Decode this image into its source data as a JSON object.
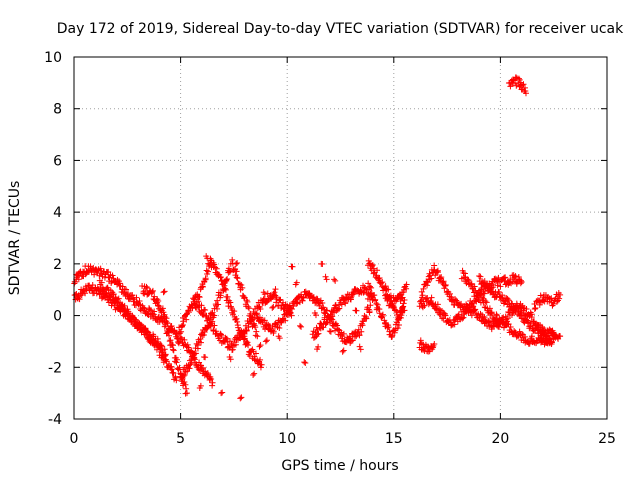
{
  "chart_data": {
    "type": "scatter",
    "title": "Day 172 of 2019, Sidereal Day-to-day VTEC variation (SDTVAR) for receiver ucak",
    "xlabel": "GPS time / hours",
    "ylabel": "SDTVAR / TECUs",
    "xlim": [
      0,
      25
    ],
    "ylim": [
      -4,
      10
    ],
    "xticks": [
      0,
      5,
      10,
      15,
      20,
      25
    ],
    "yticks": [
      -4,
      -2,
      0,
      2,
      4,
      6,
      8,
      10
    ],
    "grid": true,
    "marker": "+",
    "color": "#ff0000",
    "series": [
      {
        "name": "tracks",
        "tracks": [
          [
            [
              0.0,
              1.4
            ],
            [
              0.6,
              1.8
            ],
            [
              1.5,
              1.6
            ],
            [
              2.2,
              1.1
            ],
            [
              2.8,
              0.6
            ],
            [
              3.4,
              0.2
            ],
            [
              3.8,
              0.0
            ],
            [
              4.2,
              -0.3
            ],
            [
              4.6,
              -1.2
            ],
            [
              5.0,
              -2.3
            ],
            [
              5.3,
              -3.0
            ]
          ],
          [
            [
              0.0,
              0.6
            ],
            [
              0.7,
              1.1
            ],
            [
              1.2,
              0.9
            ],
            [
              1.8,
              0.5
            ],
            [
              2.4,
              0.1
            ],
            [
              2.9,
              -0.3
            ],
            [
              3.4,
              -0.7
            ],
            [
              3.9,
              -1.0
            ],
            [
              4.3,
              -1.5
            ]
          ],
          [
            [
              1.2,
              1.2
            ],
            [
              2.0,
              0.6
            ],
            [
              2.8,
              -0.2
            ],
            [
              3.5,
              -0.8
            ],
            [
              4.2,
              -1.6
            ],
            [
              4.8,
              -2.5
            ]
          ],
          [
            [
              3.2,
              1.0
            ],
            [
              3.6,
              0.9
            ],
            [
              4.0,
              0.4
            ],
            [
              4.4,
              -0.3
            ],
            [
              4.9,
              -0.9
            ],
            [
              5.3,
              -1.2
            ],
            [
              5.7,
              -1.8
            ],
            [
              6.1,
              -2.2
            ],
            [
              6.5,
              -2.6
            ]
          ],
          [
            [
              4.8,
              -0.8
            ],
            [
              5.4,
              0.2
            ],
            [
              6.0,
              1.0
            ],
            [
              6.4,
              2.1
            ],
            [
              6.8,
              1.6
            ],
            [
              7.2,
              0.6
            ],
            [
              7.8,
              -0.6
            ],
            [
              8.3,
              -1.4
            ],
            [
              8.8,
              -1.9
            ]
          ],
          [
            [
              5.0,
              -2.4
            ],
            [
              5.5,
              -1.8
            ],
            [
              6.0,
              -0.8
            ],
            [
              6.6,
              0.2
            ],
            [
              7.0,
              1.2
            ],
            [
              7.4,
              2.0
            ],
            [
              7.8,
              1.2
            ],
            [
              8.2,
              0.2
            ],
            [
              8.6,
              -0.8
            ]
          ],
          [
            [
              5.6,
              0.6
            ],
            [
              6.2,
              0.0
            ],
            [
              6.8,
              -0.8
            ],
            [
              7.4,
              -1.2
            ],
            [
              8.0,
              -0.6
            ],
            [
              8.6,
              0.3
            ],
            [
              9.2,
              0.8
            ],
            [
              9.8,
              0.4
            ],
            [
              10.2,
              0.0
            ]
          ],
          [
            [
              8.6,
              0.0
            ],
            [
              9.2,
              -0.6
            ],
            [
              9.8,
              -0.2
            ],
            [
              10.4,
              0.6
            ],
            [
              11.0,
              0.8
            ],
            [
              11.6,
              0.4
            ],
            [
              12.2,
              -0.4
            ],
            [
              12.8,
              -1.0
            ],
            [
              13.4,
              -0.6
            ],
            [
              13.9,
              0.4
            ]
          ],
          [
            [
              11.2,
              -0.8
            ],
            [
              11.8,
              -0.2
            ],
            [
              12.4,
              0.4
            ],
            [
              13.0,
              0.8
            ],
            [
              13.6,
              1.0
            ],
            [
              14.0,
              0.6
            ]
          ],
          [
            [
              13.8,
              2.0
            ],
            [
              14.2,
              1.6
            ],
            [
              14.6,
              1.0
            ],
            [
              15.0,
              0.5
            ],
            [
              15.4,
              0.8
            ],
            [
              15.6,
              1.2
            ]
          ],
          [
            [
              13.8,
              1.2
            ],
            [
              14.2,
              0.4
            ],
            [
              14.6,
              -0.3
            ],
            [
              14.9,
              -0.8
            ],
            [
              15.2,
              -0.3
            ],
            [
              15.5,
              0.6
            ]
          ],
          [
            [
              14.6,
              0.9
            ],
            [
              14.9,
              0.3
            ],
            [
              15.2,
              0.0
            ],
            [
              15.5,
              0.2
            ]
          ],
          [
            [
              16.3,
              0.8
            ],
            [
              16.6,
              1.4
            ],
            [
              16.9,
              1.8
            ],
            [
              17.2,
              1.4
            ],
            [
              17.6,
              0.8
            ],
            [
              18.0,
              0.4
            ],
            [
              18.4,
              0.2
            ]
          ],
          [
            [
              16.2,
              0.4
            ],
            [
              16.6,
              0.6
            ],
            [
              17.0,
              0.4
            ],
            [
              17.4,
              -0.1
            ],
            [
              17.8,
              -0.3
            ],
            [
              18.2,
              0.0
            ],
            [
              18.6,
              0.4
            ],
            [
              19.0,
              0.8
            ],
            [
              19.4,
              1.1
            ],
            [
              19.8,
              1.3
            ],
            [
              20.2,
              1.3
            ],
            [
              20.6,
              1.4
            ],
            [
              21.0,
              1.3
            ]
          ],
          [
            [
              18.2,
              1.6
            ],
            [
              18.8,
              1.0
            ],
            [
              19.4,
              0.3
            ],
            [
              20.0,
              -0.3
            ],
            [
              20.6,
              -0.6
            ],
            [
              21.2,
              -0.9
            ],
            [
              21.8,
              -1.0
            ],
            [
              22.4,
              -0.9
            ],
            [
              22.8,
              -0.8
            ]
          ],
          [
            [
              18.4,
              0.3
            ],
            [
              19.0,
              0.0
            ],
            [
              19.6,
              -0.4
            ],
            [
              20.2,
              -0.2
            ],
            [
              20.8,
              0.4
            ],
            [
              21.4,
              0.0
            ],
            [
              22.0,
              -0.8
            ],
            [
              22.4,
              -1.1
            ]
          ],
          [
            [
              19.0,
              1.4
            ],
            [
              19.6,
              0.9
            ],
            [
              20.2,
              0.6
            ],
            [
              20.8,
              0.2
            ],
            [
              21.4,
              -0.4
            ],
            [
              22.0,
              -0.6
            ],
            [
              22.6,
              -0.8
            ]
          ],
          [
            [
              21.6,
              0.4
            ],
            [
              22.0,
              0.7
            ],
            [
              22.4,
              0.5
            ],
            [
              22.8,
              0.8
            ]
          ],
          [
            [
              16.2,
              -1.1
            ],
            [
              16.6,
              -1.3
            ],
            [
              16.9,
              -1.1
            ]
          ],
          [
            [
              20.4,
              8.9
            ],
            [
              20.7,
              9.1
            ],
            [
              21.0,
              8.9
            ],
            [
              21.2,
              8.6
            ]
          ]
        ],
        "scatter_points": [
          [
            6.2,
            2.3
          ],
          [
            6.4,
            2.2
          ],
          [
            7.6,
            2.0
          ],
          [
            8.2,
            -1.5
          ],
          [
            7.8,
            -3.2
          ],
          [
            8.4,
            -2.3
          ],
          [
            8.9,
            0.9
          ],
          [
            9.4,
            0.9
          ],
          [
            10.2,
            1.9
          ],
          [
            10.4,
            1.2
          ],
          [
            10.8,
            -1.8
          ],
          [
            11.4,
            -1.3
          ],
          [
            11.6,
            2.0
          ],
          [
            11.8,
            1.5
          ],
          [
            12.2,
            1.4
          ],
          [
            12.6,
            -1.4
          ],
          [
            12.9,
            -0.9
          ],
          [
            13.1,
            0.9
          ],
          [
            13.4,
            -1.2
          ],
          [
            9.0,
            -1.0
          ],
          [
            9.6,
            -0.8
          ],
          [
            10.0,
            0.2
          ],
          [
            10.6,
            -0.4
          ],
          [
            11.0,
            0.8
          ],
          [
            12.0,
            -0.6
          ],
          [
            13.2,
            0.2
          ],
          [
            6.9,
            -3.0
          ],
          [
            7.3,
            -1.6
          ],
          [
            6.1,
            -1.6
          ],
          [
            5.9,
            -2.8
          ],
          [
            4.2,
            0.9
          ],
          [
            3.9,
            0.5
          ],
          [
            8.7,
            -1.2
          ],
          [
            9.3,
            0.3
          ],
          [
            11.3,
            0.1
          ],
          [
            12.7,
            0.6
          ]
        ]
      }
    ]
  }
}
